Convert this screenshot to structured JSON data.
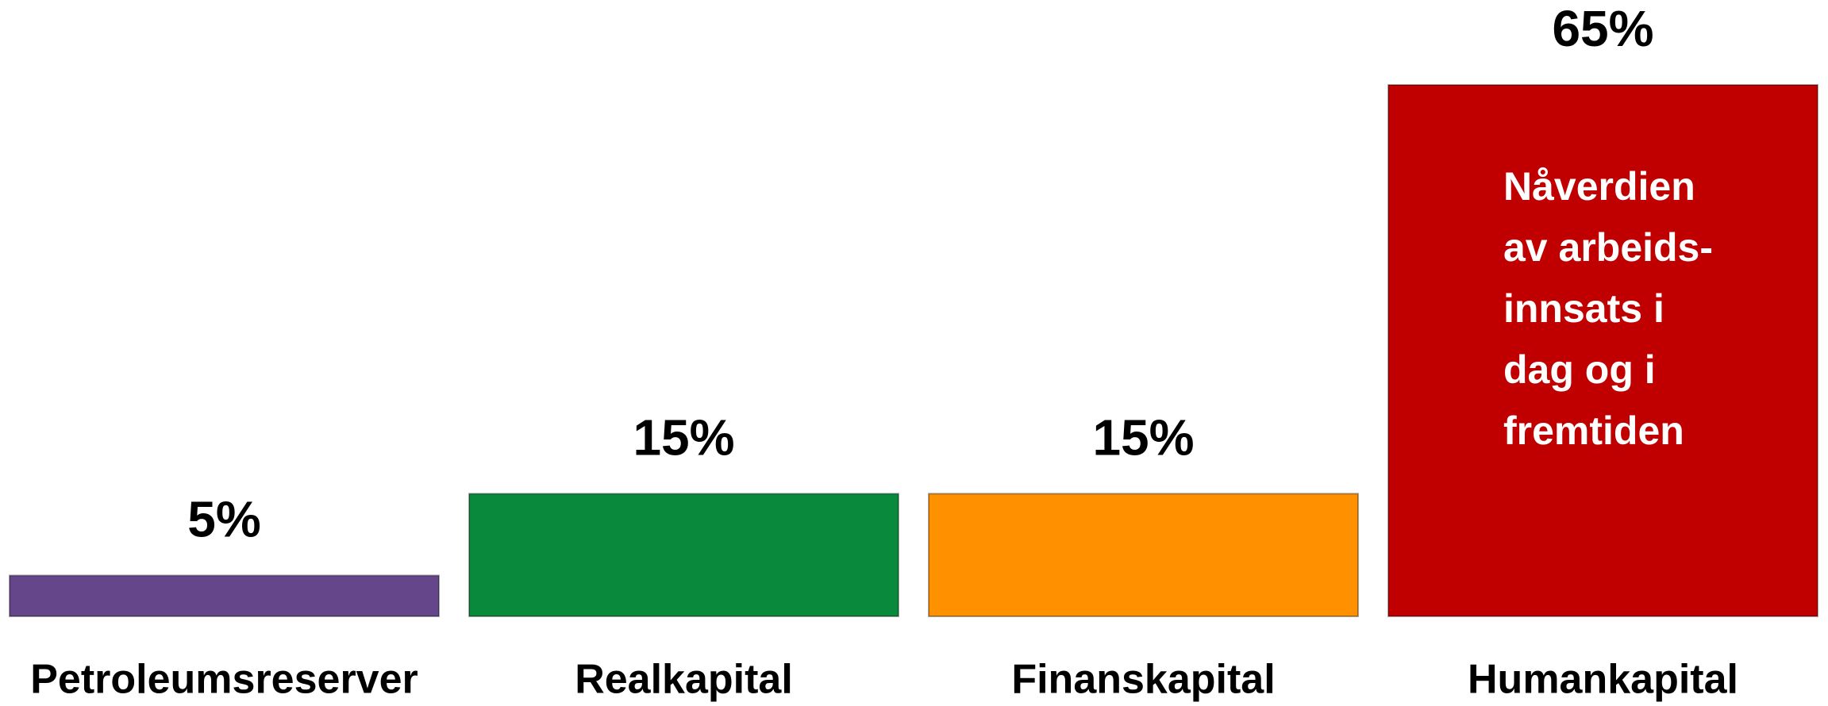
{
  "chart_data": {
    "type": "bar",
    "categories": [
      "Petroleumsreserver",
      "Realkapital",
      "Finanskapital",
      "Humankapital"
    ],
    "values": [
      5,
      15,
      15,
      65
    ],
    "value_labels": [
      "5%",
      "15%",
      "15%",
      "65%"
    ],
    "colors": [
      "#66468a",
      "#08893c",
      "#ff9100",
      "#c00000"
    ],
    "ylim": [
      0,
      65
    ],
    "annotation": [
      "Nåverdien",
      "av arbeids-",
      "innsats i",
      "dag og i",
      "fremtiden"
    ]
  }
}
